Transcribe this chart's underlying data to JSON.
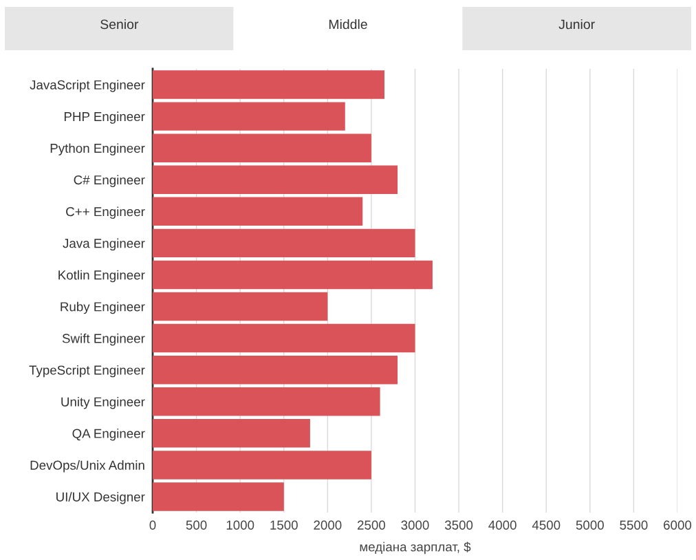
{
  "chart_data": {
    "type": "bar",
    "orientation": "horizontal",
    "categories": [
      "JavaScript Engineer",
      "PHP Engineer",
      "Python Engineer",
      "C# Engineer",
      "C++ Engineer",
      "Java Engineer",
      "Kotlin Engineer",
      "Ruby Engineer",
      "Swift Engineer",
      "TypeScript Engineer",
      "Unity Engineer",
      "QA Engineer",
      "DevOps/Unix Admin",
      "UI/UX Designer"
    ],
    "values": [
      2650,
      2200,
      2500,
      2800,
      2400,
      3000,
      3200,
      2000,
      3000,
      2800,
      2600,
      1800,
      2500,
      1500
    ],
    "color": "#d95358",
    "xlim": [
      0,
      6000
    ],
    "xticks": [
      0,
      500,
      1000,
      1500,
      2000,
      2500,
      3000,
      3500,
      4000,
      4500,
      5000,
      5500,
      6000
    ],
    "xlabel": "медіана зарплат, $",
    "grid": "x",
    "annotations": [
      "Senior",
      "Middle",
      "Junior"
    ]
  }
}
